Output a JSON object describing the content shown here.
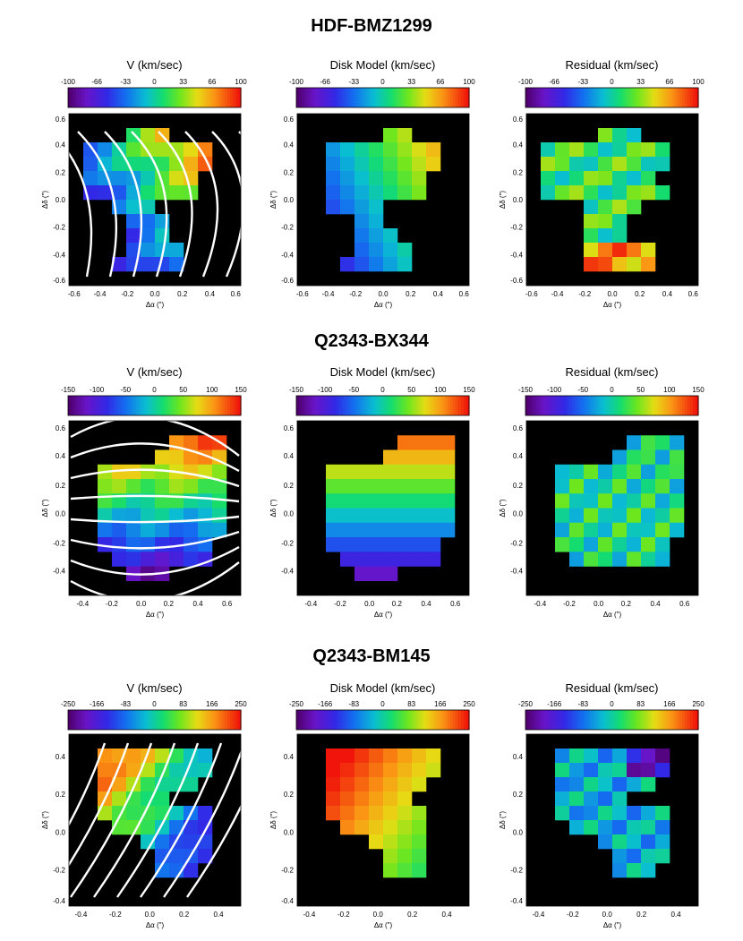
{
  "page": {
    "width": 830,
    "height": 1051
  },
  "objects": [
    {
      "name": "HDF-BMZ1299",
      "vmax": 100,
      "cbar_ticks": [
        "-100",
        "-66",
        "-33",
        "0",
        "33",
        "66",
        "100"
      ],
      "panel_titles": [
        "V (km/sec)",
        "Disk Model (km/sec)",
        "Residual (km/sec)"
      ],
      "x_ticks": [
        "-0.6",
        "-0.4",
        "-0.2",
        "0.0",
        "0.2",
        "0.4",
        "0.6"
      ],
      "y_ticks": [
        "0.6",
        "0.4",
        "0.2",
        "0.0",
        "-0.2",
        "-0.4",
        "-0.6"
      ]
    },
    {
      "name": "Q2343-BX344",
      "vmax": 150,
      "cbar_ticks": [
        "-150",
        "-100",
        "-50",
        "0",
        "50",
        "100",
        "150"
      ],
      "panel_titles": [
        "V (km/sec)",
        "Disk Model (km/sec)",
        "Residual (km/sec)"
      ],
      "x_ticks": [
        "-0.4",
        "-0.2",
        "0.0",
        "0.2",
        "0.4",
        "0.6"
      ],
      "y_ticks": [
        "0.6",
        "0.4",
        "0.2",
        "0.0",
        "-0.2",
        "-0.4"
      ]
    },
    {
      "name": "Q2343-BM145",
      "vmax": 250,
      "cbar_ticks": [
        "-250",
        "-166",
        "-83",
        "0",
        "83",
        "166",
        "250"
      ],
      "panel_titles": [
        "V (km/sec)",
        "Disk Model (km/sec)",
        "Residual (km/sec)"
      ],
      "x_ticks": [
        "-0.4",
        "-0.2",
        "0.0",
        "0.2",
        "0.4"
      ],
      "y_ticks": [
        "0.4",
        "0.2",
        "0.0",
        "-0.2",
        "-0.4"
      ]
    }
  ],
  "axis_labels": {
    "x": "Δα (\")",
    "y": "Δδ (\")"
  },
  "colormap": [
    "#000000",
    "#5a0d80",
    "#5a2dd8",
    "#2050e8",
    "#10a0d0",
    "#10d080",
    "#50e030",
    "#e8e020",
    "#f89018",
    "#f02010"
  ],
  "chart_data": [
    {
      "type": "heatmap",
      "title": "HDF-BMZ1299 V (km/sec)",
      "xlabel": "Δα (\")",
      "ylabel": "Δδ (\")",
      "xlim": [
        -0.6,
        0.6
      ],
      "ylim": [
        -0.6,
        0.6
      ],
      "vlim": [
        -100,
        100
      ],
      "grid": [
        [
          0,
          0,
          0,
          0,
          0,
          0,
          0,
          0,
          0,
          0,
          0,
          0
        ],
        [
          0,
          0,
          0,
          0,
          0,
          0,
          0,
          0,
          0,
          0,
          0,
          0
        ],
        [
          0,
          0,
          0,
          0,
          0,
          0,
          0,
          0,
          0,
          0,
          0,
          0
        ],
        [
          0,
          0,
          0,
          0,
          0,
          0,
          0,
          0,
          0,
          0,
          0,
          0
        ],
        [
          0,
          0,
          0,
          0,
          0,
          0,
          0,
          0,
          0,
          0,
          0,
          0
        ],
        [
          0,
          0,
          0,
          0,
          0,
          0,
          0,
          0,
          0,
          0,
          0,
          0
        ],
        [
          0,
          0,
          0,
          0,
          0,
          0,
          0,
          0,
          0,
          0,
          0,
          0
        ],
        [
          0,
          0,
          0,
          0,
          0,
          0,
          0,
          0,
          0,
          0,
          0,
          0
        ],
        [
          0,
          0,
          0,
          0,
          0,
          0,
          0,
          0,
          0,
          0,
          0,
          0
        ],
        [
          0,
          0,
          0,
          0,
          0,
          0,
          0,
          0,
          0,
          0,
          0,
          0
        ],
        [
          0,
          0,
          0,
          0,
          0,
          0,
          0,
          0,
          0,
          0,
          0,
          0
        ],
        [
          0,
          0,
          0,
          0,
          0,
          0,
          0,
          0,
          0,
          0,
          0,
          0
        ]
      ],
      "pattern": "vfield1",
      "contours": true
    },
    {
      "type": "heatmap",
      "title": "HDF-BMZ1299 Disk Model (km/sec)",
      "xlim": [
        -0.6,
        0.6
      ],
      "ylim": [
        -0.6,
        0.6
      ],
      "vlim": [
        -100,
        100
      ],
      "pattern": "model1"
    },
    {
      "type": "heatmap",
      "title": "HDF-BMZ1299 Residual (km/sec)",
      "xlim": [
        -0.6,
        0.6
      ],
      "ylim": [
        -0.6,
        0.6
      ],
      "vlim": [
        -100,
        100
      ],
      "pattern": "resid1"
    }
  ]
}
